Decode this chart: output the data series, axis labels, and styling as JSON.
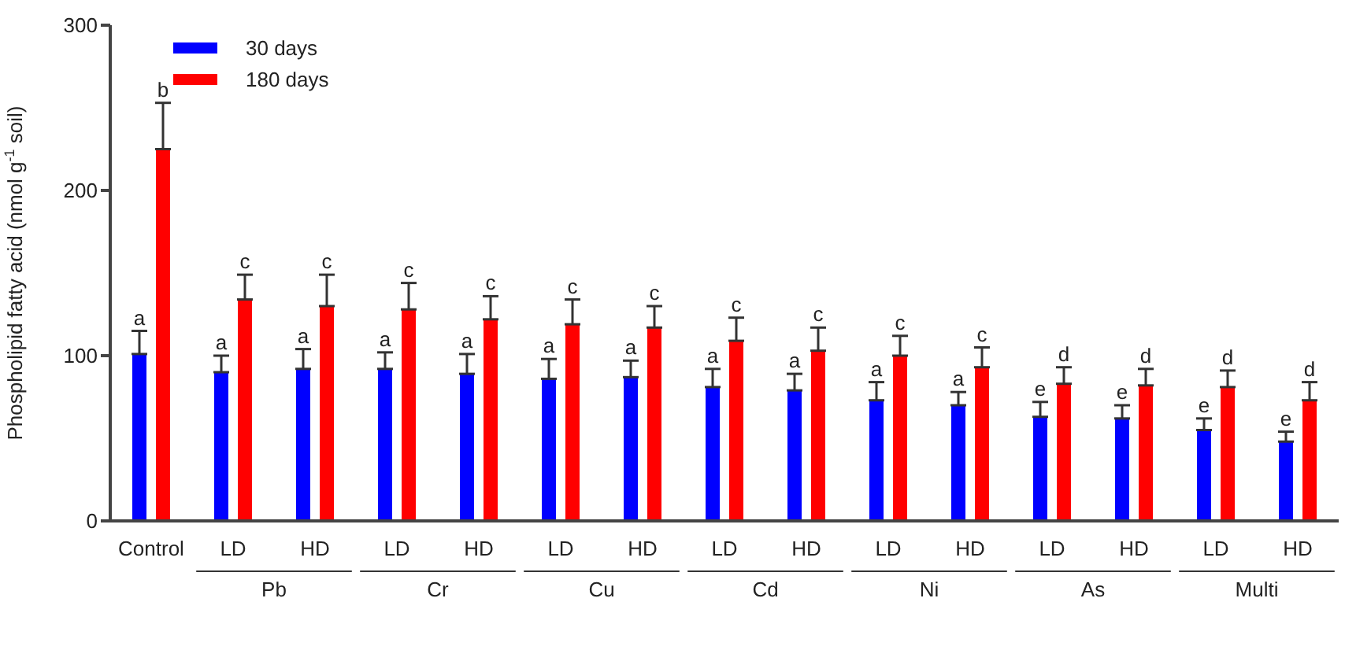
{
  "chart_data": {
    "type": "bar",
    "ylabel": "Phospholipid fatty acid (nmol g$^{-1}$ soil)",
    "categories": [
      "Control",
      "LD",
      "HD",
      "LD",
      "HD",
      "LD",
      "HD",
      "LD",
      "HD",
      "LD",
      "HD",
      "LD",
      "HD",
      "LD",
      "HD"
    ],
    "annotations": [
      "Pb",
      "Cr",
      "Cu",
      "Cd",
      "Ni",
      "As",
      "Multi"
    ],
    "ylim": [
      0,
      300
    ],
    "yticks": [
      0,
      100,
      200,
      300
    ],
    "grid": false,
    "legend": "top left",
    "series": [
      {
        "name": "30 days",
        "color": "#0000ff",
        "values": [
          101,
          90,
          92,
          92,
          89,
          86,
          87,
          81,
          79,
          73,
          70,
          63,
          62,
          55,
          48
        ],
        "errors": [
          [
            101,
            115
          ],
          [
            90,
            100
          ],
          [
            92,
            104
          ],
          [
            92,
            102
          ],
          [
            89,
            101
          ],
          [
            86,
            98
          ],
          [
            87,
            97
          ],
          [
            81,
            92
          ],
          [
            79,
            89
          ],
          [
            73,
            84
          ],
          [
            70,
            78
          ],
          [
            63,
            72
          ],
          [
            62,
            70
          ],
          [
            55,
            62
          ],
          [
            48,
            54
          ]
        ],
        "value_labels": [
          "a",
          "a",
          "a",
          "a",
          "a",
          "a",
          "a",
          "a",
          "a",
          "a",
          "a",
          "e",
          "e",
          "e",
          "e"
        ]
      },
      {
        "name": "180 days",
        "color": "#ff0000",
        "values": [
          225,
          134,
          130,
          128,
          122,
          119,
          117,
          109,
          103,
          100,
          93,
          83,
          82,
          81,
          73
        ],
        "errors": [
          [
            225,
            253
          ],
          [
            134,
            149
          ],
          [
            130,
            149
          ],
          [
            128,
            144
          ],
          [
            122,
            136
          ],
          [
            119,
            134
          ],
          [
            117,
            130
          ],
          [
            109,
            123
          ],
          [
            103,
            117
          ],
          [
            100,
            112
          ],
          [
            93,
            105
          ],
          [
            83,
            93
          ],
          [
            82,
            92
          ],
          [
            81,
            91
          ],
          [
            73,
            84
          ]
        ],
        "value_labels": [
          "b",
          "c",
          "c",
          "c",
          "c",
          "c",
          "c",
          "c",
          "c",
          "c",
          "c",
          "d",
          "d",
          "d",
          "d"
        ]
      }
    ]
  }
}
